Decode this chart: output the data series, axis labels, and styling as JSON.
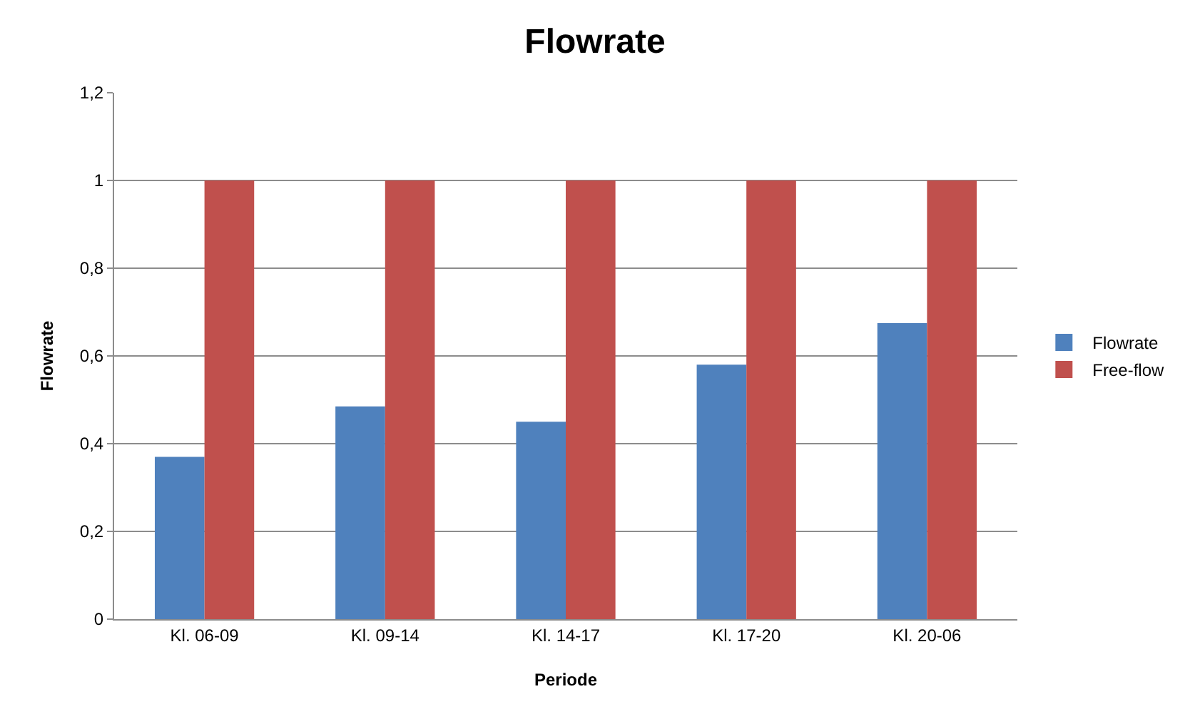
{
  "chart_data": {
    "type": "bar",
    "title": "Flowrate",
    "xlabel": "Periode",
    "ylabel": "Flowrate",
    "categories": [
      "Kl. 06-09",
      "Kl. 09-14",
      "Kl. 14-17",
      "Kl. 17-20",
      "Kl. 20-06"
    ],
    "series": [
      {
        "name": "Flowrate",
        "color": "#4f81bd",
        "values": [
          0.37,
          0.485,
          0.45,
          0.58,
          0.675
        ]
      },
      {
        "name": "Free-flow",
        "color": "#c0504d",
        "values": [
          1,
          1,
          1,
          1,
          1
        ]
      }
    ],
    "ylim": [
      0,
      1.2
    ],
    "yticks": [
      0,
      {
        "value": 0.2,
        "label": "0,2"
      },
      {
        "value": 0.4,
        "label": "0,4"
      },
      {
        "value": 0.6,
        "label": "0,6"
      },
      {
        "value": 0.8,
        "label": "0,8"
      },
      1,
      {
        "value": 1.2,
        "label": "1,2"
      }
    ],
    "grid": "y",
    "legend": "right"
  }
}
